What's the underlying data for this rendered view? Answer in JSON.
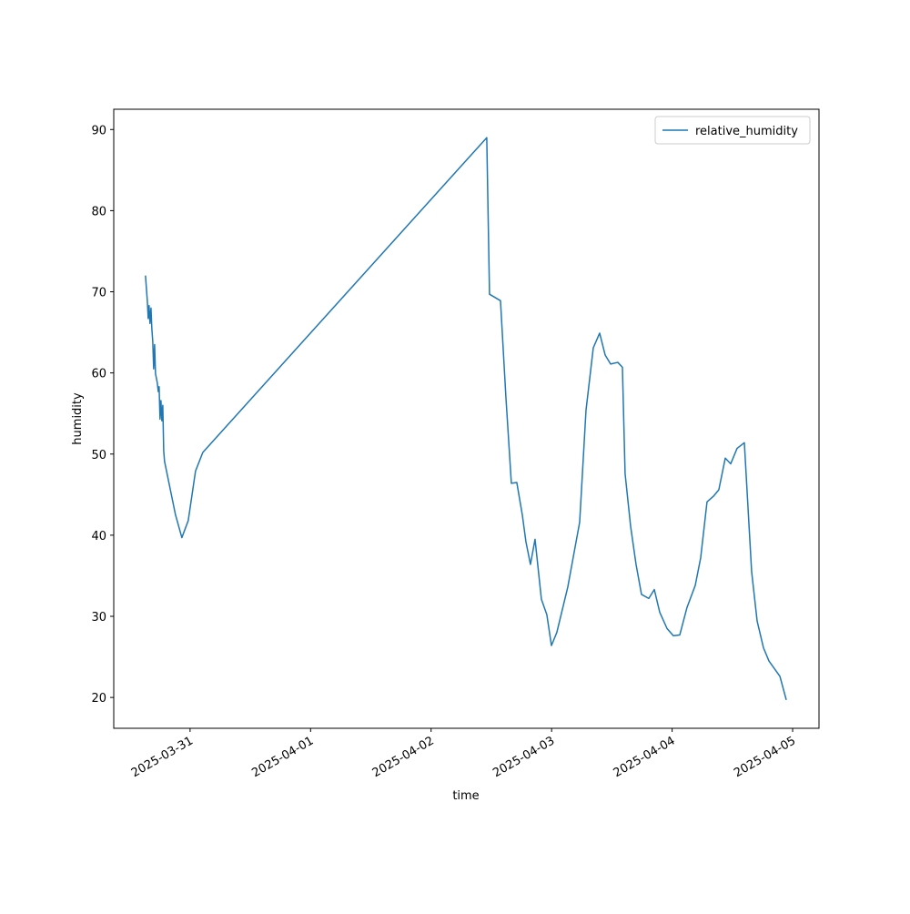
{
  "chart_data": {
    "type": "line",
    "xlabel": "time",
    "ylabel": "humidity",
    "x": [
      "2025-03-30T15:07",
      "2025-03-30T15:29",
      "2025-03-30T15:40",
      "2025-03-30T15:50",
      "2025-03-30T16:01",
      "2025-03-30T16:13",
      "2025-03-30T16:23",
      "2025-03-30T16:34",
      "2025-03-30T16:45",
      "2025-03-30T16:56",
      "2025-03-30T17:07",
      "2025-03-30T17:28",
      "2025-03-30T17:40",
      "2025-03-30T17:50",
      "2025-03-30T18:01",
      "2025-03-30T18:12",
      "2025-03-30T18:23",
      "2025-03-30T18:34",
      "2025-03-30T18:45",
      "2025-03-30T18:55",
      "2025-03-30T21:06",
      "2025-03-30T22:22",
      "2025-03-30T23:38",
      "2025-03-31T01:05",
      "2025-03-31T02:32",
      "2025-04-02T11:05",
      "2025-04-02T11:38",
      "2025-04-02T13:49",
      "2025-04-02T14:54",
      "2025-04-02T15:59",
      "2025-04-02T17:04",
      "2025-04-02T18:10",
      "2025-04-02T18:53",
      "2025-04-02T19:47",
      "2025-04-02T20:42",
      "2025-04-02T21:58",
      "2025-04-02T23:03",
      "2025-04-02T23:58",
      "2025-04-03T01:02",
      "2025-04-03T03:13",
      "2025-04-03T05:35",
      "2025-04-03T06:51",
      "2025-04-03T08:18",
      "2025-04-03T09:34",
      "2025-04-03T10:40",
      "2025-04-03T11:45",
      "2025-04-03T13:11",
      "2025-04-03T14:06",
      "2025-04-03T14:38",
      "2025-04-03T15:44",
      "2025-04-03T16:49",
      "2025-04-03T17:54",
      "2025-04-03T19:21",
      "2025-04-03T20:27",
      "2025-04-03T21:32",
      "2025-04-03T22:59",
      "2025-04-04T00:15",
      "2025-04-04T01:31",
      "2025-04-04T02:58",
      "2025-04-04T04:36",
      "2025-04-04T05:41",
      "2025-04-04T06:57",
      "2025-04-04T08:14",
      "2025-04-04T09:18",
      "2025-04-04T10:35",
      "2025-04-04T11:40",
      "2025-04-04T12:56",
      "2025-04-04T14:23",
      "2025-04-04T15:50",
      "2025-04-04T16:56",
      "2025-04-04T18:12",
      "2025-04-04T19:17",
      "2025-04-04T21:28",
      "2025-04-04T22:44"
    ],
    "series": [
      {
        "name": "relative_humidity",
        "color": "#1f77b4",
        "values": [
          72,
          68.9,
          66.7,
          68.3,
          66.1,
          68.0,
          65.5,
          63.9,
          60.5,
          63.5,
          59.9,
          58.8,
          57.7,
          58.3,
          54.3,
          56.6,
          54.1,
          56.0,
          50.4,
          49.1,
          42.5,
          39.7,
          41.8,
          47.9,
          50.2,
          89.0,
          69.7,
          68.9,
          57.0,
          46.4,
          46.5,
          42.5,
          39.2,
          36.4,
          39.5,
          32.1,
          30.2,
          26.4,
          28.0,
          33.6,
          41.6,
          55.4,
          63.1,
          64.9,
          62.2,
          61.1,
          61.3,
          60.7,
          47.6,
          41.1,
          36.4,
          32.7,
          32.2,
          33.3,
          30.5,
          28.5,
          27.6,
          27.7,
          31.1,
          33.8,
          37.2,
          44.1,
          44.8,
          45.6,
          49.5,
          48.8,
          50.7,
          51.4,
          35.5,
          29.4,
          26.1,
          24.5,
          22.6,
          19.7
        ]
      }
    ],
    "xlim": [
      "2025-03-30T08:48",
      "2025-04-05T05:15"
    ],
    "xticks": [
      "2025-03-31",
      "2025-04-01",
      "2025-04-02",
      "2025-04-03",
      "2025-04-04",
      "2025-04-05"
    ],
    "ylim": [
      16.2,
      92.5
    ],
    "yticks": [
      20,
      30,
      40,
      50,
      60,
      70,
      80,
      90
    ],
    "legend": "upper right"
  }
}
